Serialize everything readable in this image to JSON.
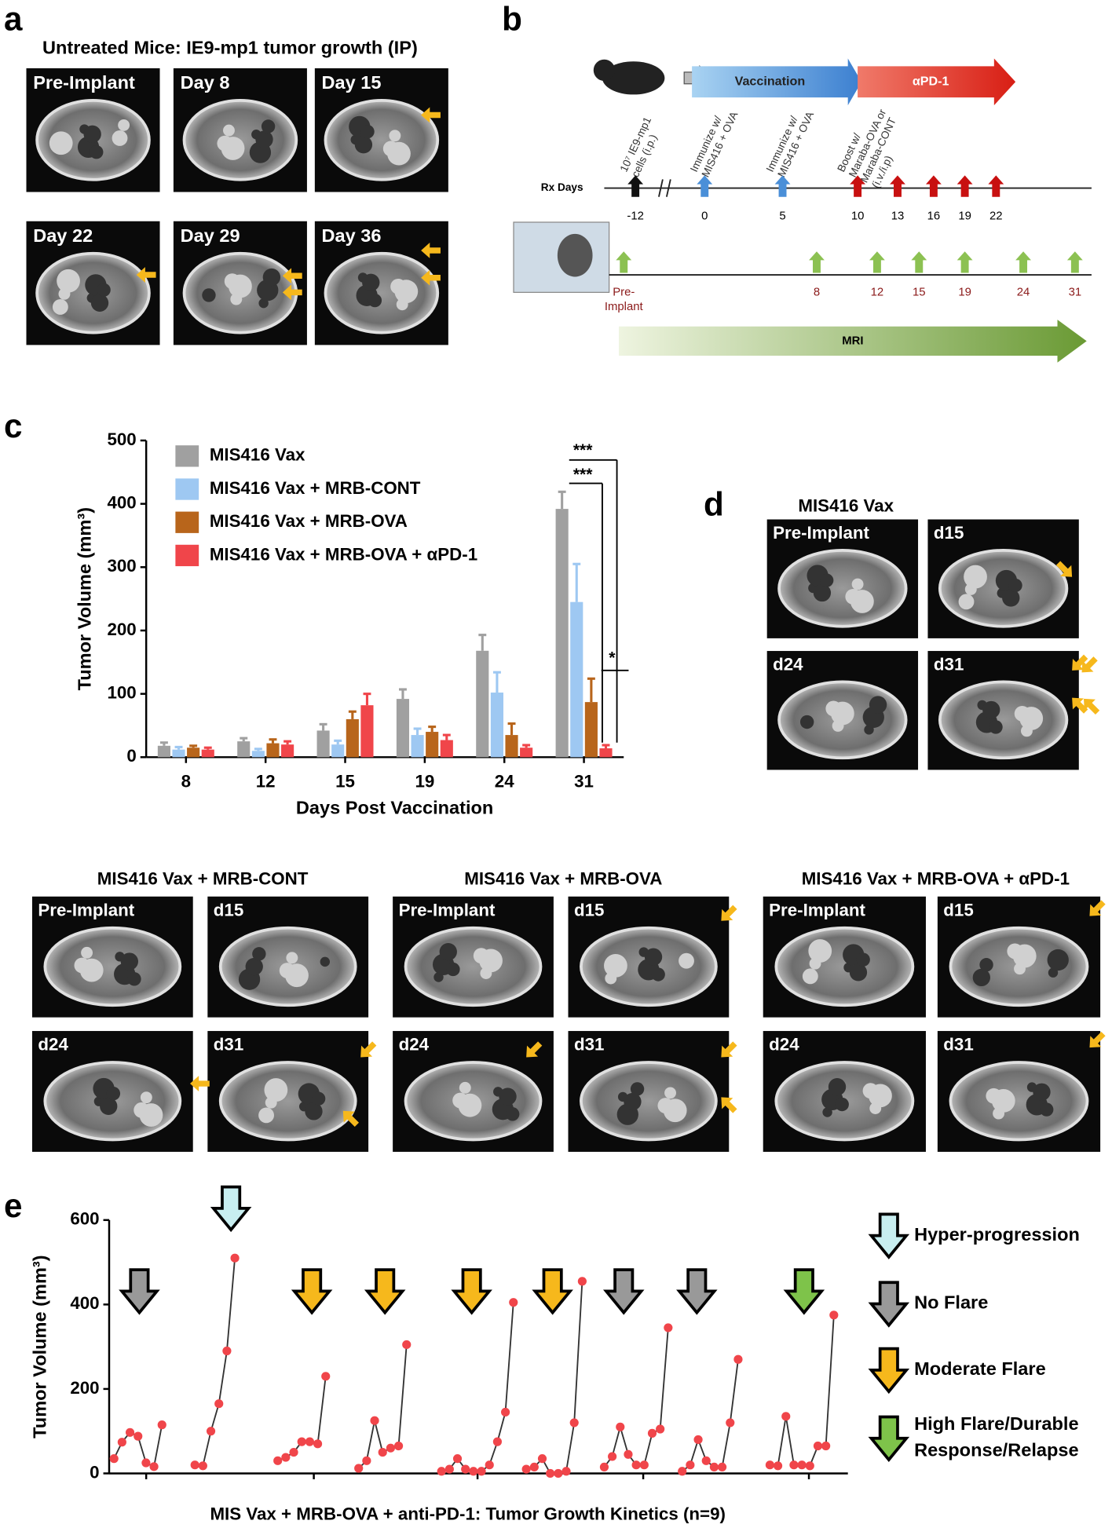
{
  "panel_letters": [
    "a",
    "b",
    "c",
    "d",
    "e"
  ],
  "panel_a": {
    "title": "Untreated Mice: IE9-mp1 tumor growth (IP)",
    "labels": [
      "Pre-Implant",
      "Day 8",
      "Day 15",
      "Day 22",
      "Day 29",
      "Day 36"
    ]
  },
  "panel_b": {
    "phases": [
      "Vaccination",
      "αPD-1"
    ],
    "treatments": [
      [
        "10⁷ IE9-mp1",
        "cells (i.p.)"
      ],
      [
        "Immunize w/",
        "MIS416 + OVA"
      ],
      [
        "Immunize w/",
        "MIS416 + OVA"
      ],
      [
        "Boost w/",
        "Maraba-OVA or",
        "Maraba-CONT",
        "(i.v./i.p)"
      ]
    ],
    "rx_label": "Rx Days",
    "rx_days": [
      -12,
      0,
      5,
      10,
      13,
      16,
      19,
      22
    ],
    "mri_days": [
      [
        "Pre-",
        "Implant"
      ],
      8,
      12,
      15,
      19,
      24,
      31
    ],
    "mri_label": "MRI"
  },
  "mri_panels": [
    {
      "title": "MIS416 Vax",
      "labels": [
        "Pre-Implant",
        "d15",
        "d24",
        "d31"
      ]
    },
    {
      "title": "MIS416 Vax + MRB-CONT",
      "labels": [
        "Pre-Implant",
        "d15",
        "d24",
        "d31"
      ]
    },
    {
      "title": "MIS416 Vax + MRB-OVA",
      "labels": [
        "Pre-Implant",
        "d15",
        "d24",
        "d31"
      ]
    },
    {
      "title": "MIS416 Vax + MRB-OVA + αPD-1",
      "labels": [
        "Pre-Implant",
        "d15",
        "d24",
        "d31"
      ]
    }
  ],
  "chart_data": [
    {
      "type": "bar",
      "ylabel": "Tumor Volume (mm³)",
      "xlabel": "Days Post Vaccination",
      "categories": [
        "8",
        "12",
        "15",
        "19",
        "24",
        "31"
      ],
      "ylim": [
        0,
        500
      ],
      "yticks": [
        0,
        100,
        200,
        300,
        400,
        500
      ],
      "series": [
        {
          "name": "MIS416 Vax",
          "color": "#a0a0a0",
          "values": [
            18,
            25,
            42,
            92,
            168,
            392
          ],
          "errors": [
            5,
            5,
            10,
            15,
            25,
            27
          ]
        },
        {
          "name": "MIS416 Vax + MRB-CONT",
          "color": "#9ec8f2",
          "values": [
            12,
            10,
            20,
            35,
            102,
            245
          ],
          "errors": [
            4,
            3,
            6,
            10,
            32,
            60
          ]
        },
        {
          "name": "MIS416 Vax + MRB-OVA",
          "color": "#b8651b",
          "values": [
            15,
            22,
            60,
            40,
            35,
            87
          ],
          "errors": [
            3,
            6,
            12,
            8,
            18,
            37
          ]
        },
        {
          "name": "MIS416 Vax + MRB-OVA + αPD-1",
          "color": "#f0454a",
          "values": [
            12,
            20,
            82,
            27,
            15,
            14
          ],
          "errors": [
            3,
            5,
            18,
            8,
            4,
            5
          ]
        }
      ],
      "annotations": [
        "***",
        "***",
        "*"
      ]
    },
    {
      "type": "line",
      "ylabel": "Tumor Volume (mm³)",
      "xlabel": "MIS Vax + MRB-OVA + anti-PD-1: Tumor Growth Kinetics (n=9)",
      "ylim": [
        0,
        600
      ],
      "yticks": [
        0,
        200,
        400,
        600
      ],
      "line_color": "#333333",
      "point_color": "#f0454a",
      "legend": [
        {
          "label": [
            "Hyper-progression"
          ],
          "color": "#c8eef0"
        },
        {
          "label": [
            "No Flare"
          ],
          "color": "#999999"
        },
        {
          "label": [
            "Moderate Flare"
          ],
          "color": "#f6b81c"
        },
        {
          "label": [
            "High Flare/Durable",
            "Response/Relapse"
          ],
          "color": "#7ec34a"
        }
      ],
      "series": [
        {
          "color": "#999999",
          "values": [
            35,
            74,
            97,
            88,
            25,
            16,
            115
          ]
        },
        {
          "color": "#c8eef0",
          "values": [
            20,
            18,
            100,
            165,
            290,
            510
          ]
        },
        {
          "color": "#f6b81c",
          "values": [
            30,
            38,
            50,
            75,
            75,
            70,
            230
          ]
        },
        {
          "color": "#f6b81c",
          "values": [
            12,
            30,
            125,
            50,
            60,
            65,
            305
          ]
        },
        {
          "color": "#f6b81c",
          "values": [
            5,
            10,
            35,
            10,
            5,
            5,
            20,
            75,
            145,
            405
          ]
        },
        {
          "color": "#f6b81c",
          "values": [
            10,
            15,
            35,
            0,
            0,
            5,
            120,
            455
          ]
        },
        {
          "color": "#999999",
          "values": [
            15,
            40,
            110,
            45,
            20,
            20,
            95,
            105,
            345
          ]
        },
        {
          "color": "#999999",
          "values": [
            5,
            20,
            80,
            30,
            15,
            15,
            120,
            270
          ]
        },
        {
          "color": "#7ec34a",
          "values": [
            20,
            18,
            135,
            20,
            20,
            18,
            65,
            65,
            375
          ]
        }
      ]
    }
  ]
}
